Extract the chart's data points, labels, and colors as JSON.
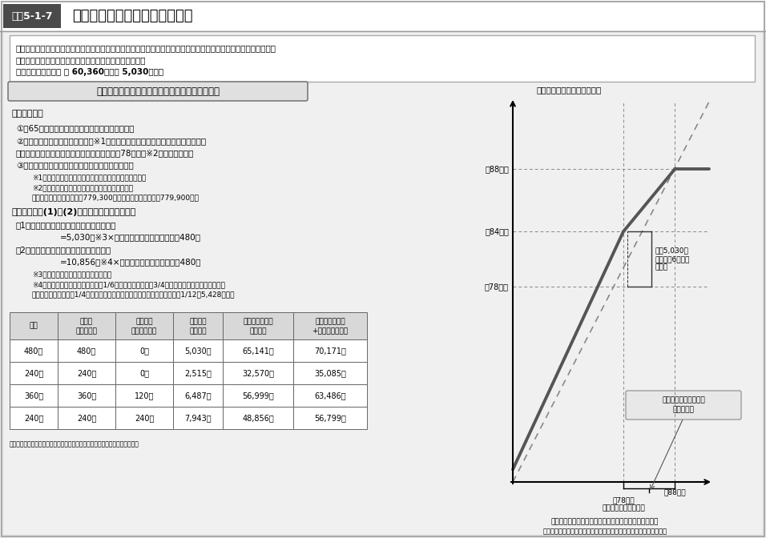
{
  "title_box_color": "#4a4a4a",
  "title_label": "図表5-1-7",
  "title_text": "年金生活者支援給付金について",
  "bg_color": "#e8e8e8",
  "content_bg": "#f5f5f5",
  "intro_text_line1": "年金生活者支援給付金は、年金を含めても所得が低い者（前年の所得額が老齢基礎年金満額以下の者など）の生活を",
  "intro_text_line2": "支援するために、年金に上乗せして支給するものである。",
  "intro_text_line3": "【令和２年度基準額 年 60,360円（月 5,030円）】",
  "section_title": "高齢者への給付金（老齢年金生活者支援給付金）",
  "support_req_title": "【支給要件】",
  "req1": "①　65歳以上の老齢基礎年金の受給者であること",
  "req2a": "②　前年の公的年金等の収入金額※1とその他の所得（給与所得や利子所得など）",
  "req2b": "　　との合計額が、老齢基礎年金満額相当（約78万円）※2以下であること",
  "req3": "③　同一世帯の全員が市町村民税非課税であること",
  "note1": "※1　障害年金・遺族年金等の非課税収入は含まれない。",
  "note2a": "※2　毎年度、老齢基礎年金の額を勘案して改定。",
  "note2b": "　　　令和２年７月までは779,300円。令和２年８月以降は779,900円。",
  "benefit_title": "【給付額】　(1)と(2)の合計額が支給される。",
  "benefit1_title": "（1）保険料納付済期間に基づく額（月額）",
  "benefit1_formula": "=5,030円※3×保険料納付済期間（月数）／480月",
  "benefit2_title": "（2）保険料免除期間に基づく額（月額）",
  "benefit2_formula": "=10,856円※4×保険料免除期間（月数）／480月",
  "note3": "※3　毎年度、物価変動に応じて改定。",
  "note4a": "※4　老齢基礎年金満額（月額）の1/6（保険料全額免除、3/4免除、半額免除期間の場合）。",
  "note4b": "　　　ただし、保険料1/4免除期間の場合は、老齢基礎年金満額（月額）の1/12（5,428円）。",
  "table_headers": [
    "例：",
    "保険料\n納付済期間",
    "保険料料\n全額免除期間",
    "給付金額\n（月額）",
    "老齢基礎年金額\n（月額）",
    "老齢基礎年金額\n+給付金（月額）"
  ],
  "table_rows": [
    [
      "480月",
      "0月",
      "5,030円",
      "65,141円",
      "70,171円"
    ],
    [
      "240月",
      "0月",
      "2,515円",
      "32,570円",
      "35,085円"
    ],
    [
      "360月",
      "120月",
      "6,487円",
      "56,999円",
      "63,486円"
    ],
    [
      "240月",
      "240月",
      "7,943円",
      "48,856円",
      "56,799円"
    ]
  ],
  "graph_ylabel": "給付金上乗せ後の額（年額）",
  "graph_xlabel": "前年の公的年金等の収入金額とその他の所得との合計額",
  "graph_note": "（注）保険料納付済期間に基づく公的年金だけで生活している者の例",
  "y_labels": [
    "約88万円",
    "約84万円",
    "約78万円"
  ],
  "x_labels": [
    "約78万円\n（老齢基礎年金満額）",
    "約88万円"
  ],
  "annotation1": "月額5,030円\n（年額約6万円）\nを支給",
  "annotation2": "補足的な給付（次頁）\nの支給範囲"
}
